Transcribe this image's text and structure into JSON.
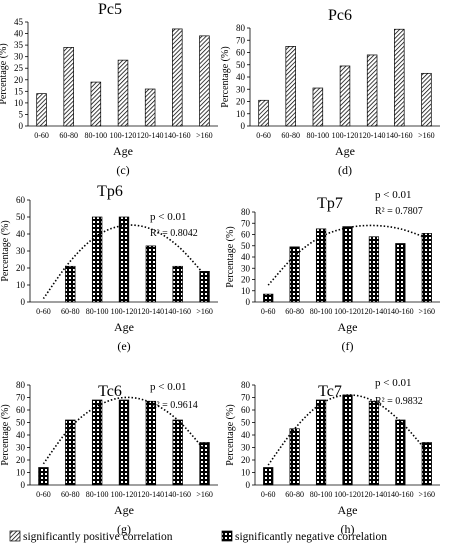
{
  "chart_data": [
    {
      "type": "bar",
      "title": "Pc5",
      "panel_label": "(c)",
      "xlabel": "Age",
      "ylabel": "Percentage (%)",
      "categories": [
        "0-60",
        "60-80",
        "80-100",
        "100-120",
        "120-140",
        "140-160",
        ">160"
      ],
      "values": [
        14,
        34,
        19,
        28.5,
        16,
        42,
        39
      ],
      "ylim": [
        0,
        45
      ],
      "yticks": [
        0,
        5,
        10,
        15,
        20,
        25,
        30,
        35,
        40,
        45
      ],
      "pattern": "positive",
      "p_text": "",
      "r2_text": "",
      "trend": null
    },
    {
      "type": "bar",
      "title": "Pc6",
      "panel_label": "(d)",
      "xlabel": "Age",
      "ylabel": "Percentage (%)",
      "categories": [
        "0-60",
        "60-80",
        "80-100",
        "100-120",
        "120-140",
        "140-160",
        ">160"
      ],
      "values": [
        21,
        65,
        31,
        49,
        58,
        79,
        43
      ],
      "ylim": [
        0,
        80
      ],
      "yticks": [
        0,
        10,
        20,
        30,
        40,
        50,
        60,
        70,
        80
      ],
      "pattern": "positive",
      "p_text": "",
      "r2_text": "",
      "trend": null
    },
    {
      "type": "bar",
      "title": "Tp6",
      "panel_label": "(e)",
      "xlabel": "Age",
      "ylabel": "Percentage (%)",
      "categories": [
        "0-60",
        "60-80",
        "80-100",
        "100-120",
        "120-140",
        "140-160",
        ">160"
      ],
      "values": [
        0,
        21,
        50,
        50,
        33,
        21,
        18
      ],
      "ylim": [
        0,
        60
      ],
      "yticks": [
        0,
        10,
        20,
        30,
        40,
        50,
        60
      ],
      "pattern": "negative",
      "p_text": "p < 0.01",
      "r2_text": "R² = 0.8042",
      "trend": [
        2,
        24,
        39,
        45,
        43,
        33,
        16
      ]
    },
    {
      "type": "bar",
      "title": "Tp7",
      "panel_label": "(f)",
      "xlabel": "Age",
      "ylabel": "Percentage (%)",
      "categories": [
        "0-60",
        "60-80",
        "80-100",
        "100-120",
        "120-140",
        "140-160",
        ">160"
      ],
      "values": [
        7,
        49,
        65,
        67,
        58,
        52,
        61
      ],
      "ylim": [
        0,
        80
      ],
      "yticks": [
        0,
        10,
        20,
        30,
        40,
        50,
        60,
        70,
        80
      ],
      "pattern": "negative",
      "p_text": "p < 0.01",
      "r2_text": "R² = 0.7807",
      "trend": [
        15,
        41,
        58,
        66,
        68,
        65,
        57
      ]
    },
    {
      "type": "bar",
      "title": "Tc6",
      "panel_label": "(g)",
      "xlabel": "Age",
      "ylabel": "Percentage (%)",
      "categories": [
        "0-60",
        "60-80",
        "80-100",
        "100-120",
        "120-140",
        "140-160",
        ">160"
      ],
      "values": [
        14,
        52,
        68,
        68,
        67,
        52,
        34
      ],
      "ylim": [
        0,
        80
      ],
      "yticks": [
        0,
        10,
        20,
        30,
        40,
        50,
        60,
        70,
        80
      ],
      "pattern": "negative",
      "p_text": "p < 0.01",
      "r2_text": "R² = 0.9614",
      "trend": [
        17,
        46,
        63,
        70,
        66,
        52,
        28
      ]
    },
    {
      "type": "bar",
      "title": "Tc7",
      "panel_label": "(h)",
      "xlabel": "Age",
      "ylabel": "Percentage (%)",
      "categories": [
        "0-60",
        "60-80",
        "80-100",
        "100-120",
        "120-140",
        "140-160",
        ">160"
      ],
      "values": [
        14,
        45,
        68,
        72,
        67,
        52,
        34
      ],
      "ylim": [
        0,
        80
      ],
      "yticks": [
        0,
        10,
        20,
        30,
        40,
        50,
        60,
        70,
        80
      ],
      "pattern": "negative",
      "p_text": "p < 0.01",
      "r2_text": "R² = 0.9832",
      "trend": [
        16,
        45,
        65,
        72,
        67,
        51,
        27
      ]
    }
  ],
  "legend": {
    "positive_label": "significantly positive correlation",
    "negative_label": "significantly negative correlation"
  },
  "colors": {
    "bar_stroke": "#000000",
    "pattern_ink": "#000000",
    "background": "#ffffff"
  }
}
